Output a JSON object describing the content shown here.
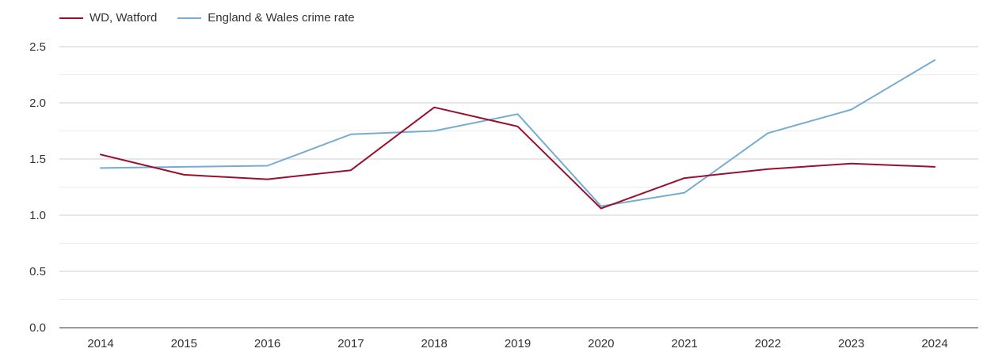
{
  "colors": {
    "watford": "#9a0f2e",
    "england_wales": "#76acd0",
    "grid_major": "#cfcfcf",
    "grid_minor": "#ececec",
    "axis": "#333333"
  },
  "legend": {
    "series_1": "WD, Watford",
    "series_2": "England & Wales crime rate"
  },
  "chart_data": {
    "type": "line",
    "title": "",
    "xlabel": "",
    "ylabel": "",
    "x": [
      "2014",
      "2015",
      "2016",
      "2017",
      "2018",
      "2019",
      "2020",
      "2021",
      "2022",
      "2023",
      "2024"
    ],
    "ylim": [
      0,
      2.5
    ],
    "yticks": [
      "0.0",
      "0.5",
      "1.0",
      "1.5",
      "2.0",
      "2.5"
    ],
    "grid": true,
    "legend_position": "top-left",
    "series": [
      {
        "name": "WD, Watford",
        "color": "#9a0f2e",
        "values": [
          1.54,
          1.36,
          1.32,
          1.4,
          1.96,
          1.79,
          1.06,
          1.33,
          1.41,
          1.46,
          1.43
        ]
      },
      {
        "name": "England & Wales crime rate",
        "color": "#76acd0",
        "values": [
          1.42,
          1.43,
          1.44,
          1.72,
          1.75,
          1.9,
          1.08,
          1.2,
          1.73,
          1.94,
          2.38
        ]
      }
    ]
  }
}
